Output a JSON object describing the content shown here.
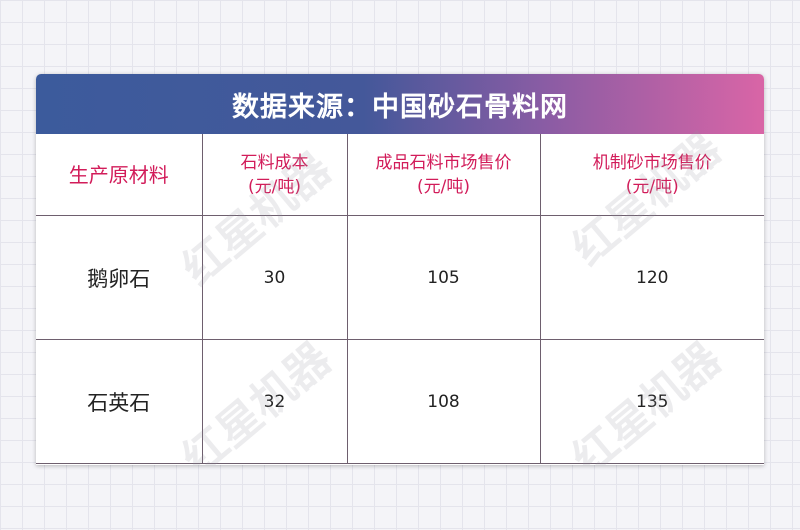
{
  "title": "数据来源：中国砂石骨料网",
  "watermark": "红星机器",
  "colors": {
    "header_text": "#d21c5a",
    "banner_start": "#3c5b9c",
    "banner_end": "#d965a6"
  },
  "table": {
    "headers": [
      {
        "line1": "生产原材料",
        "line2": ""
      },
      {
        "line1": "石料成本",
        "line2": "(元/吨)"
      },
      {
        "line1": "成品石料市场售价",
        "line2": "(元/吨)"
      },
      {
        "line1": "机制砂市场售价",
        "line2": "(元/吨)"
      }
    ],
    "rows": [
      [
        "鹅卵石",
        "30",
        "105",
        "120"
      ],
      [
        "石英石",
        "32",
        "108",
        "135"
      ]
    ]
  }
}
